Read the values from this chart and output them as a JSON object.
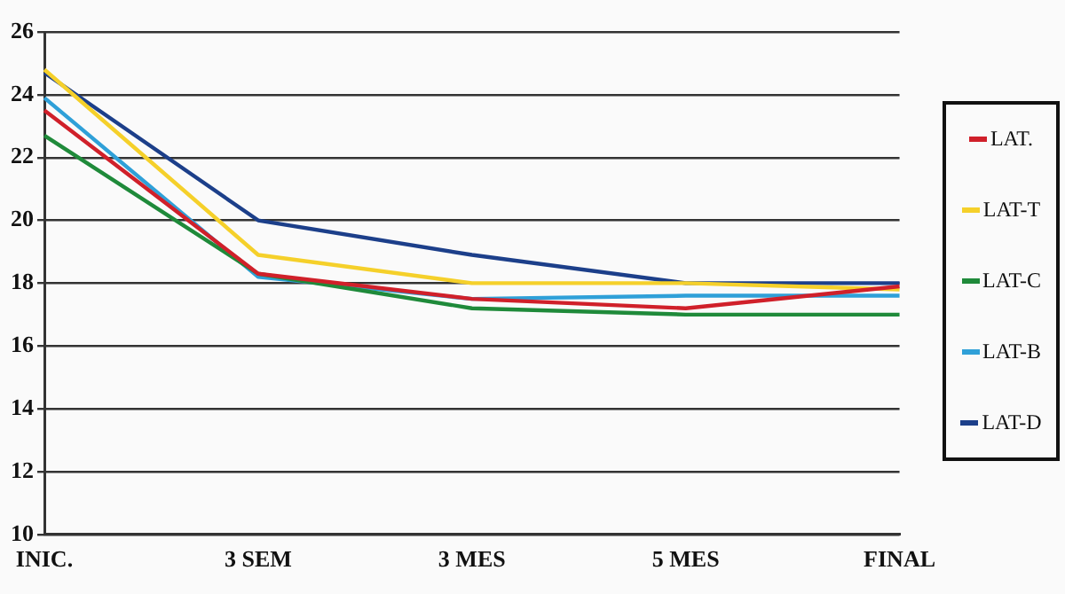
{
  "chart_data": {
    "type": "line",
    "categories": [
      "INIC.",
      "3 SEM",
      "3 MES",
      "5 MES",
      "FINAL"
    ],
    "series": [
      {
        "name": "LAT.",
        "color": "#d0202a",
        "values": [
          23.5,
          18.3,
          17.5,
          17.2,
          17.9
        ]
      },
      {
        "name": "LAT-T",
        "color": "#f5d02a",
        "values": [
          24.8,
          18.9,
          18.0,
          18.0,
          17.8
        ]
      },
      {
        "name": "LAT-C",
        "color": "#1f8a3a",
        "values": [
          22.7,
          18.3,
          17.2,
          17.0,
          17.0
        ]
      },
      {
        "name": "LAT-B",
        "color": "#2fa0d8",
        "values": [
          23.9,
          18.2,
          17.5,
          17.6,
          17.6
        ]
      },
      {
        "name": "LAT-D",
        "color": "#1c3f8a",
        "values": [
          24.7,
          20.0,
          18.9,
          18.0,
          18.0
        ]
      }
    ],
    "ylim": [
      10,
      26
    ],
    "yticks": [
      10,
      12,
      14,
      16,
      18,
      20,
      22,
      24,
      26
    ],
    "grid": "y",
    "legend": "right",
    "marker": "none",
    "line_style": "solid"
  }
}
